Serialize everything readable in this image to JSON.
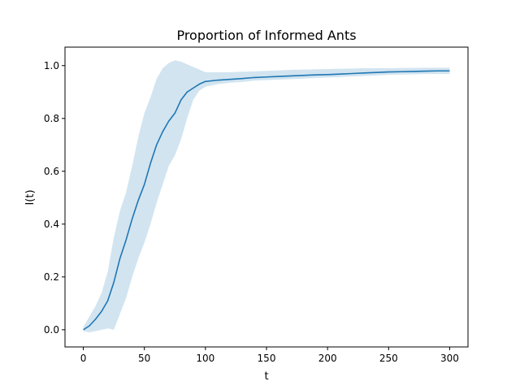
{
  "chart_data": {
    "type": "line",
    "title": "Proportion of Informed Ants",
    "xlabel": "t",
    "ylabel": "I(t)",
    "xlim": [
      -15,
      315
    ],
    "ylim": [
      -0.065,
      1.07
    ],
    "xticks": [
      0,
      50,
      100,
      150,
      200,
      250,
      300
    ],
    "yticks": [
      0.0,
      0.2,
      0.4,
      0.6,
      0.8,
      1.0
    ],
    "xtick_labels": [
      "0",
      "50",
      "100",
      "150",
      "200",
      "250",
      "300"
    ],
    "ytick_labels": [
      "0.0",
      "0.2",
      "0.4",
      "0.6",
      "0.8",
      "1.0"
    ],
    "grid": false,
    "line_color": "#1f77b4",
    "band_color": "#1f77b4",
    "band_opacity": 0.2,
    "series": [
      {
        "x": [
          0,
          5,
          10,
          15,
          20,
          25,
          30,
          35,
          40,
          45,
          50,
          55,
          60,
          65,
          70,
          75,
          80,
          85,
          90,
          95,
          100,
          110,
          120,
          130,
          140,
          150,
          160,
          170,
          180,
          190,
          200,
          210,
          220,
          230,
          240,
          250,
          260,
          270,
          280,
          290,
          300
        ],
        "mean": [
          0.0,
          0.015,
          0.04,
          0.07,
          0.11,
          0.18,
          0.27,
          0.34,
          0.42,
          0.49,
          0.55,
          0.63,
          0.7,
          0.75,
          0.79,
          0.82,
          0.87,
          0.9,
          0.915,
          0.93,
          0.94,
          0.945,
          0.948,
          0.951,
          0.955,
          0.957,
          0.959,
          0.961,
          0.963,
          0.965,
          0.966,
          0.968,
          0.97,
          0.972,
          0.974,
          0.976,
          0.977,
          0.978,
          0.979,
          0.98,
          0.98
        ],
        "lower": [
          -0.005,
          -0.01,
          -0.005,
          0.0,
          0.005,
          0.0,
          0.06,
          0.12,
          0.2,
          0.27,
          0.33,
          0.4,
          0.48,
          0.55,
          0.62,
          0.66,
          0.72,
          0.8,
          0.87,
          0.905,
          0.92,
          0.93,
          0.935,
          0.938,
          0.943,
          0.945,
          0.947,
          0.949,
          0.951,
          0.953,
          0.955,
          0.957,
          0.959,
          0.961,
          0.963,
          0.965,
          0.966,
          0.967,
          0.968,
          0.968,
          0.968
        ],
        "upper": [
          0.01,
          0.05,
          0.09,
          0.14,
          0.22,
          0.35,
          0.45,
          0.52,
          0.62,
          0.73,
          0.82,
          0.88,
          0.95,
          0.99,
          1.01,
          1.02,
          1.015,
          1.005,
          0.995,
          0.985,
          0.975,
          0.975,
          0.975,
          0.977,
          0.978,
          0.98,
          0.982,
          0.984,
          0.985,
          0.986,
          0.987,
          0.988,
          0.989,
          0.99,
          0.99,
          0.99,
          0.991,
          0.991,
          0.992,
          0.992,
          0.992
        ]
      }
    ]
  }
}
